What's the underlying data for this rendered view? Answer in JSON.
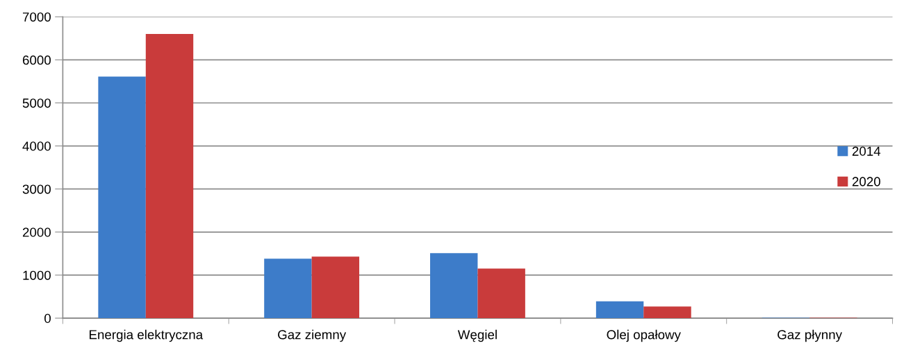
{
  "chart_data": {
    "type": "bar",
    "categories": [
      "Energia elektryczna",
      "Gaz ziemny",
      "Węgiel",
      "Olej opałowy",
      "Gaz płynny"
    ],
    "series": [
      {
        "name": "2014",
        "color": "#3d7cc9",
        "values": [
          5610,
          1380,
          1510,
          390,
          10
        ]
      },
      {
        "name": "2020",
        "color": "#c93b3b",
        "values": [
          6600,
          1430,
          1150,
          270,
          10
        ]
      }
    ],
    "ylim": [
      0,
      7000
    ],
    "yticks": [
      0,
      1000,
      2000,
      3000,
      4000,
      5000,
      6000,
      7000
    ],
    "grid": "y",
    "legend": "right"
  }
}
